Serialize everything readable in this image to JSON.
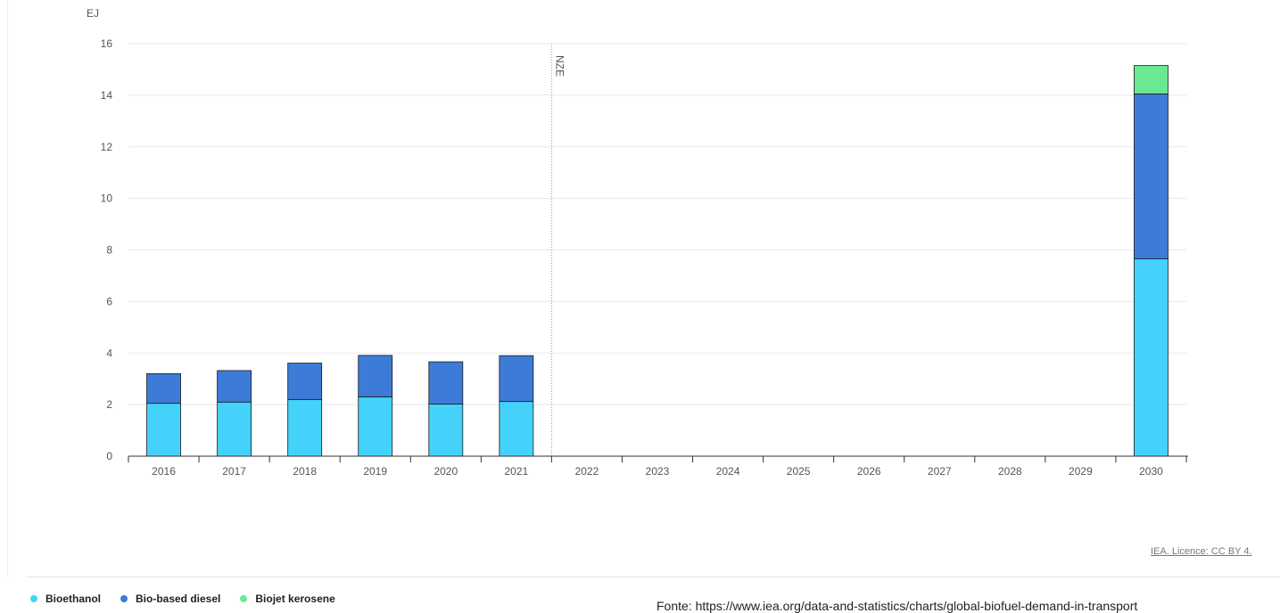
{
  "chart_data": {
    "type": "bar",
    "stacked": true,
    "unit_label": "EJ",
    "categories": [
      "2016",
      "2017",
      "2018",
      "2019",
      "2020",
      "2021",
      "2022",
      "2023",
      "2024",
      "2025",
      "2026",
      "2027",
      "2028",
      "2029",
      "2030"
    ],
    "series": [
      {
        "name": "Bioethanol",
        "color": "#44d2fa",
        "values": [
          2.05,
          2.1,
          2.2,
          2.3,
          2.02,
          2.12,
          0,
          0,
          0,
          0,
          0,
          0,
          0,
          0,
          7.65
        ]
      },
      {
        "name": "Bio-based diesel",
        "color": "#3d7bd9",
        "values": [
          1.15,
          1.22,
          1.41,
          1.61,
          1.64,
          1.78,
          0,
          0,
          0,
          0,
          0,
          0,
          0,
          0,
          6.4
        ]
      },
      {
        "name": "Biojet kerosene",
        "color": "#6be893",
        "values": [
          0,
          0,
          0,
          0,
          0,
          0,
          0,
          0,
          0,
          0,
          0,
          0,
          0,
          0,
          1.1
        ]
      }
    ],
    "ylim": [
      0,
      16
    ],
    "yticks": [
      0,
      2,
      4,
      6,
      8,
      10,
      12,
      14,
      16
    ],
    "grid": true,
    "annotation": {
      "label": "NZE",
      "between": [
        "2021",
        "2022"
      ]
    },
    "legend_position": "bottom-left"
  },
  "footer": {
    "licence": "IEA. Licence: CC BY 4.",
    "source": "Fonte: https://www.iea.org/data-and-statistics/charts/global-biofuel-demand-in-transport"
  }
}
